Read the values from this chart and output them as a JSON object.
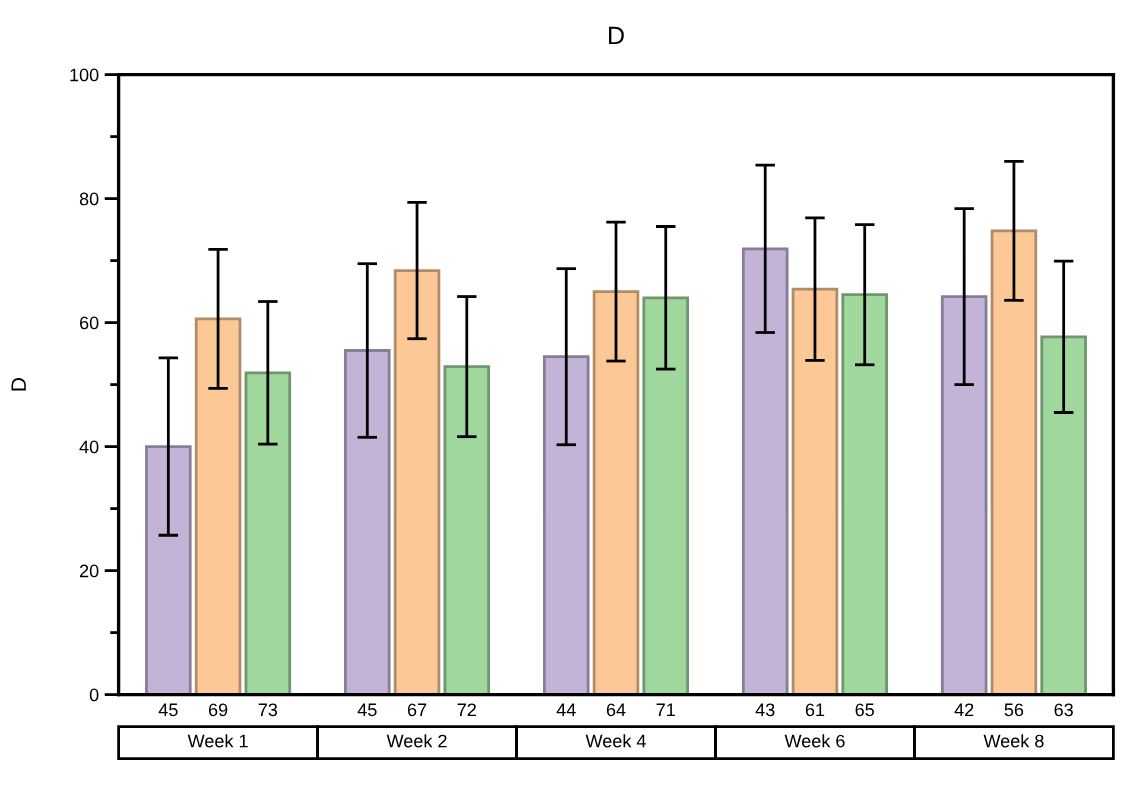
{
  "chart_data": {
    "type": "bar",
    "title": "D",
    "ylabel": "D",
    "categories": [
      "45",
      "69",
      "73",
      null,
      "45",
      "67",
      "72",
      null,
      "44",
      "64",
      "71",
      null,
      "43",
      "61",
      "65",
      null,
      "42",
      "56",
      "63"
    ],
    "values": [
      40.0,
      60.6,
      51.9,
      null,
      55.5,
      68.4,
      52.9,
      null,
      54.5,
      65.0,
      64.0,
      null,
      71.9,
      65.4,
      64.5,
      null,
      64.2,
      74.8,
      57.7
    ],
    "errors": [
      14.3,
      11.2,
      11.5,
      null,
      14.0,
      11.0,
      11.3,
      null,
      14.2,
      11.2,
      11.5,
      null,
      13.5,
      11.5,
      11.3,
      null,
      14.2,
      11.2,
      12.2
    ],
    "colors": [
      "#c3b3d6",
      "#fcc896",
      "#9fd79c",
      null,
      "#c3b3d6",
      "#fcc896",
      "#9fd79c",
      null,
      "#c3b3d6",
      "#fcc896",
      "#9fd79c",
      null,
      "#c3b3d6",
      "#fcc896",
      "#9fd79c",
      null,
      "#c3b3d6",
      "#fcc896",
      "#9fd79c"
    ],
    "ylim": [
      0,
      100
    ],
    "yticks": [
      0,
      {
        "value": 10,
        "label": null
      },
      20,
      {
        "value": 30,
        "label": null
      },
      40,
      {
        "value": 50,
        "label": null
      },
      60,
      {
        "value": 70,
        "label": null
      },
      80,
      {
        "value": 90,
        "label": null
      },
      100
    ],
    "annotations": [
      "Week 1",
      "Week 2",
      "Week 4",
      "Week 6",
      "Week 8"
    ]
  }
}
